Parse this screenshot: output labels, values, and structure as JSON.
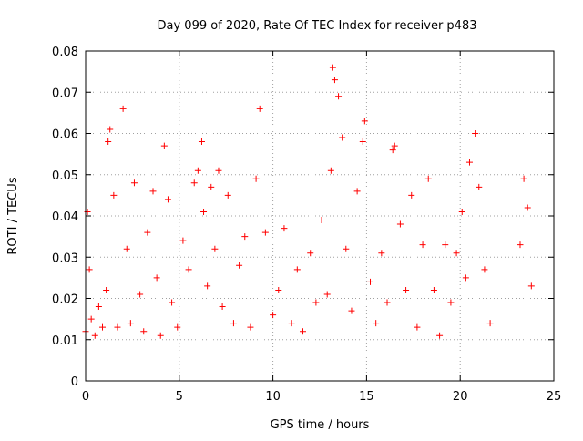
{
  "chart_data": {
    "type": "scatter",
    "title": "Day 099 of 2020, Rate Of TEC Index for receiver p483",
    "xlabel": "GPS time / hours",
    "ylabel": "ROTI / TECUs",
    "xlim": [
      0,
      25
    ],
    "ylim": [
      0,
      0.08
    ],
    "x_ticks": [
      0,
      5,
      10,
      15,
      20,
      25
    ],
    "y_ticks": [
      0,
      0.01,
      0.02,
      0.03,
      0.04,
      0.05,
      0.06,
      0.07,
      0.08
    ],
    "x_tick_labels": [
      "0",
      "5",
      "10",
      "15",
      "20",
      "25"
    ],
    "y_tick_labels": [
      "0",
      "0.01",
      "0.02",
      "0.03",
      "0.04",
      "0.05",
      "0.06",
      "0.07",
      "0.08"
    ],
    "grid": true,
    "marker": "+",
    "color": "#ff0000",
    "series": [
      {
        "x": [
          0.0,
          0.1,
          0.2,
          0.3,
          0.5,
          0.7,
          0.9,
          1.1,
          1.2,
          1.3,
          1.5,
          1.7,
          2.0,
          2.2,
          2.4,
          2.6,
          2.9,
          3.1,
          3.3,
          3.6,
          3.8,
          4.0,
          4.2,
          4.4,
          4.6,
          4.9,
          5.2,
          5.5,
          5.8,
          6.0,
          6.2,
          6.3,
          6.5,
          6.7,
          6.9,
          7.1,
          7.3,
          7.6,
          7.9,
          8.2,
          8.5,
          8.8,
          9.1,
          9.3,
          9.6,
          10.0,
          10.3,
          10.6,
          11.0,
          11.3,
          11.6,
          12.0,
          12.3,
          12.6,
          12.9,
          13.1,
          13.2,
          13.3,
          13.5,
          13.7,
          13.9,
          14.2,
          14.5,
          14.8,
          14.9,
          15.2,
          15.5,
          15.8,
          16.1,
          16.4,
          16.5,
          16.8,
          17.1,
          17.4,
          17.7,
          18.0,
          18.3,
          18.6,
          18.9,
          19.2,
          19.5,
          19.8,
          20.1,
          20.3,
          20.5,
          20.8,
          21.0,
          21.3,
          21.6,
          23.2,
          23.4,
          23.6,
          23.8
        ],
        "y": [
          0.012,
          0.041,
          0.027,
          0.015,
          0.011,
          0.018,
          0.013,
          0.022,
          0.058,
          0.061,
          0.045,
          0.013,
          0.066,
          0.032,
          0.014,
          0.048,
          0.021,
          0.012,
          0.036,
          0.046,
          0.025,
          0.011,
          0.057,
          0.044,
          0.019,
          0.013,
          0.034,
          0.027,
          0.048,
          0.051,
          0.058,
          0.041,
          0.023,
          0.047,
          0.032,
          0.051,
          0.018,
          0.045,
          0.014,
          0.028,
          0.035,
          0.013,
          0.049,
          0.066,
          0.036,
          0.016,
          0.022,
          0.037,
          0.014,
          0.027,
          0.012,
          0.031,
          0.019,
          0.039,
          0.021,
          0.051,
          0.076,
          0.073,
          0.069,
          0.059,
          0.032,
          0.017,
          0.046,
          0.058,
          0.063,
          0.024,
          0.014,
          0.031,
          0.019,
          0.056,
          0.057,
          0.038,
          0.022,
          0.045,
          0.013,
          0.033,
          0.049,
          0.022,
          0.011,
          0.033,
          0.019,
          0.031,
          0.041,
          0.025,
          0.053,
          0.06,
          0.047,
          0.027,
          0.014,
          0.033,
          0.049,
          0.042,
          0.023
        ]
      }
    ]
  }
}
